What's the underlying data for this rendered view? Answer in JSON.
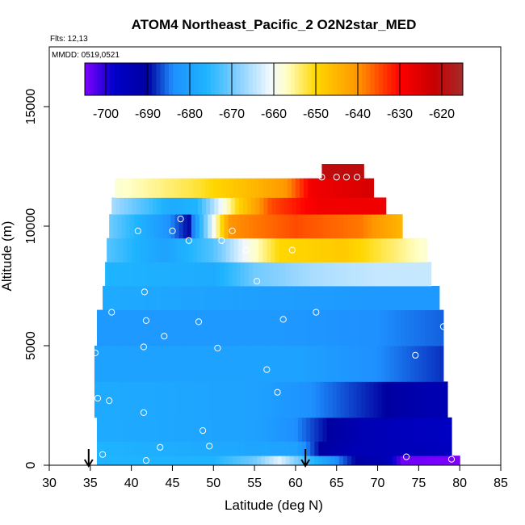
{
  "chart_data": {
    "type": "heatmap",
    "title": "ATOM4 Northeast_Pacific_2 O2N2star_MED",
    "flights_label": "Flts: 12,13",
    "mmdd_label": "MMDD: 0519,0521",
    "xlabel": "Latitude (deg N)",
    "ylabel": "Altitude (m)",
    "xlim": [
      30,
      85
    ],
    "ylim": [
      0,
      17500
    ],
    "xticks": [
      "30",
      "35",
      "40",
      "45",
      "50",
      "55",
      "60",
      "65",
      "70",
      "75",
      "80",
      "85"
    ],
    "yticks": [
      "0",
      "5000",
      "10000",
      "15000"
    ],
    "colorbar": {
      "range": [
        -705,
        -615
      ],
      "ticks": [
        "-700",
        "-690",
        "-680",
        "-670",
        "-660",
        "-650",
        "-640",
        "-630",
        "-620"
      ],
      "stops": [
        {
          "v": -705,
          "c": "#7f00ff"
        },
        {
          "v": -698,
          "c": "#0000c8"
        },
        {
          "v": -690,
          "c": "#0000a0"
        },
        {
          "v": -684,
          "c": "#1e90ff"
        },
        {
          "v": -676,
          "c": "#1eb4ff"
        },
        {
          "v": -668,
          "c": "#8cd2ff"
        },
        {
          "v": -661,
          "c": "#f0f8ff"
        },
        {
          "v": -657,
          "c": "#ffffc8"
        },
        {
          "v": -650,
          "c": "#ffd700"
        },
        {
          "v": -640,
          "c": "#ff9600"
        },
        {
          "v": -630,
          "c": "#ff0000"
        },
        {
          "v": -622,
          "c": "#c80000"
        },
        {
          "v": -615,
          "c": "#a52a2a"
        }
      ]
    },
    "latitude_markers": [
      34.8,
      61.2
    ],
    "field_bands": [
      {
        "alt": [
          0,
          400
        ],
        "lat": [
          35.8,
          80.0
        ],
        "pts": [
          [
            35.8,
            -676
          ],
          [
            50,
            -676
          ],
          [
            55,
            -670
          ],
          [
            58,
            -662
          ],
          [
            61,
            -672
          ],
          [
            65,
            -684
          ],
          [
            68,
            -692
          ],
          [
            71,
            -694
          ],
          [
            73,
            -704
          ],
          [
            80,
            -705
          ]
        ]
      },
      {
        "alt": [
          400,
          1000
        ],
        "lat": [
          35.8,
          79.0
        ],
        "pts": [
          [
            35.8,
            -676
          ],
          [
            60,
            -680
          ],
          [
            63,
            -690
          ],
          [
            67,
            -694
          ],
          [
            79,
            -696
          ]
        ]
      },
      {
        "alt": [
          1000,
          2000
        ],
        "lat": [
          35.8,
          79.0
        ],
        "pts": [
          [
            35.8,
            -678
          ],
          [
            55,
            -680
          ],
          [
            60,
            -684
          ],
          [
            64,
            -690
          ],
          [
            68,
            -694
          ],
          [
            79,
            -697
          ]
        ]
      },
      {
        "alt": [
          2000,
          3500
        ],
        "lat": [
          35.5,
          78.5
        ],
        "pts": [
          [
            35.5,
            -678
          ],
          [
            55,
            -680
          ],
          [
            62,
            -684
          ],
          [
            68,
            -688
          ],
          [
            74,
            -692
          ],
          [
            78.5,
            -694
          ]
        ]
      },
      {
        "alt": [
          3500,
          5000
        ],
        "lat": [
          35.5,
          78.0
        ],
        "pts": [
          [
            35.5,
            -680
          ],
          [
            60,
            -680
          ],
          [
            70,
            -684
          ],
          [
            78,
            -688
          ]
        ]
      },
      {
        "alt": [
          5000,
          6500
        ],
        "lat": [
          35.8,
          78.0
        ],
        "pts": [
          [
            35.8,
            -682
          ],
          [
            58,
            -682
          ],
          [
            70,
            -684
          ],
          [
            78,
            -686
          ]
        ]
      },
      {
        "alt": [
          6500,
          7500
        ],
        "lat": [
          36.5,
          77.5
        ],
        "pts": [
          [
            36.5,
            -678
          ],
          [
            50,
            -680
          ],
          [
            70,
            -682
          ],
          [
            77.5,
            -682
          ]
        ]
      },
      {
        "alt": [
          7500,
          8500
        ],
        "lat": [
          36.8,
          76.5
        ],
        "pts": [
          [
            36.8,
            -676
          ],
          [
            50,
            -678
          ],
          [
            55,
            -670
          ],
          [
            62,
            -666
          ],
          [
            70,
            -664
          ],
          [
            76.5,
            -664
          ]
        ]
      },
      {
        "alt": [
          8500,
          9500
        ],
        "lat": [
          37.0,
          76.0
        ],
        "pts": [
          [
            37,
            -672
          ],
          [
            44,
            -680
          ],
          [
            50,
            -672
          ],
          [
            54,
            -660
          ],
          [
            58,
            -650
          ],
          [
            66,
            -648
          ],
          [
            76,
            -658
          ]
        ]
      },
      {
        "alt": [
          9500,
          10500
        ],
        "lat": [
          37.3,
          73.0
        ],
        "pts": [
          [
            37.3,
            -670
          ],
          [
            44,
            -682
          ],
          [
            47,
            -690
          ],
          [
            49,
            -670
          ],
          [
            52,
            -640
          ],
          [
            60,
            -635
          ],
          [
            68,
            -638
          ],
          [
            73,
            -645
          ]
        ]
      },
      {
        "alt": [
          10500,
          11200
        ],
        "lat": [
          37.6,
          71.0
        ],
        "pts": [
          [
            37.6,
            -666
          ],
          [
            45,
            -678
          ],
          [
            48,
            -676
          ],
          [
            53,
            -650
          ],
          [
            57,
            -635
          ],
          [
            63,
            -628
          ],
          [
            71,
            -628
          ]
        ]
      },
      {
        "alt": [
          11200,
          12000
        ],
        "lat": [
          38.0,
          69.5
        ],
        "pts": [
          [
            38,
            -658
          ],
          [
            48,
            -652
          ],
          [
            55,
            -645
          ],
          [
            59,
            -640
          ],
          [
            62,
            -628
          ],
          [
            69.5,
            -624
          ]
        ]
      },
      {
        "alt": [
          12000,
          12600
        ],
        "lat": [
          63.2,
          68.3
        ],
        "pts": [
          [
            63.2,
            -620
          ],
          [
            68.3,
            -620
          ]
        ]
      }
    ],
    "sample_points": [
      [
        36.5,
        450
      ],
      [
        41.8,
        200
      ],
      [
        43.5,
        750
      ],
      [
        49.5,
        800
      ],
      [
        48.7,
        1450
      ],
      [
        41.5,
        2200
      ],
      [
        37.3,
        2700
      ],
      [
        35.9,
        2800
      ],
      [
        57.8,
        3050
      ],
      [
        56.5,
        4000
      ],
      [
        35.6,
        4700
      ],
      [
        41.5,
        4950
      ],
      [
        44.0,
        5400
      ],
      [
        50.5,
        4900
      ],
      [
        48.2,
        6000
      ],
      [
        41.8,
        6050
      ],
      [
        37.6,
        6400
      ],
      [
        58.5,
        6100
      ],
      [
        62.5,
        6400
      ],
      [
        74.6,
        4600
      ],
      [
        78.0,
        5800
      ],
      [
        41.6,
        7250
      ],
      [
        55.3,
        7700
      ],
      [
        40.8,
        9800
      ],
      [
        45.0,
        9800
      ],
      [
        47.0,
        9400
      ],
      [
        51.0,
        9400
      ],
      [
        52.3,
        9800
      ],
      [
        54.0,
        9000
      ],
      [
        59.6,
        9000
      ],
      [
        46.0,
        10300
      ],
      [
        63.2,
        12050
      ],
      [
        65.0,
        12050
      ],
      [
        66.2,
        12050
      ],
      [
        67.5,
        12050
      ],
      [
        73.5,
        350
      ],
      [
        79.0,
        250
      ]
    ]
  }
}
